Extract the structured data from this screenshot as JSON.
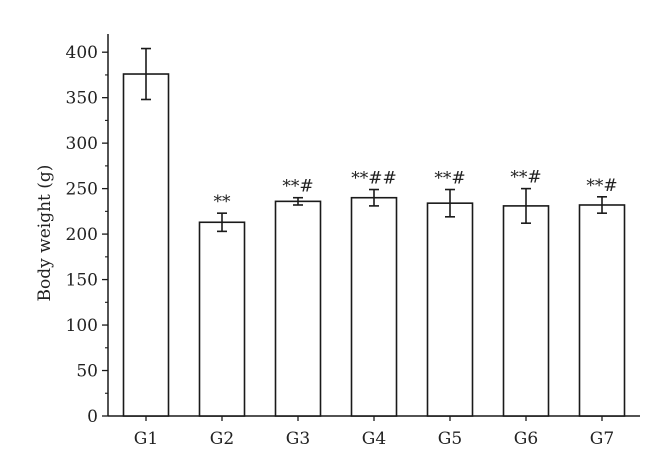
{
  "chart_data": {
    "type": "bar",
    "title": "",
    "xlabel": "",
    "ylabel": "Body weight (g)",
    "ylim": [
      0,
      420
    ],
    "yticks": [
      0,
      50,
      100,
      150,
      200,
      250,
      300,
      350,
      400
    ],
    "ytick_labels": [
      "0",
      "50",
      "100",
      "150",
      "200",
      "250",
      "300",
      "350",
      "400"
    ],
    "categories": [
      "G1",
      "G2",
      "G3",
      "G4",
      "G5",
      "G6",
      "G7"
    ],
    "values": [
      376,
      213,
      236,
      240,
      234,
      231,
      232
    ],
    "errors": [
      28,
      10,
      4,
      9,
      15,
      19,
      9
    ],
    "annotations": [
      "",
      "**",
      "**#",
      "**##",
      "**#",
      "**#",
      "**#"
    ],
    "bar_fill": "#ffffff",
    "bar_stroke": "#1a1a1a",
    "grid": false,
    "legend": "none"
  }
}
